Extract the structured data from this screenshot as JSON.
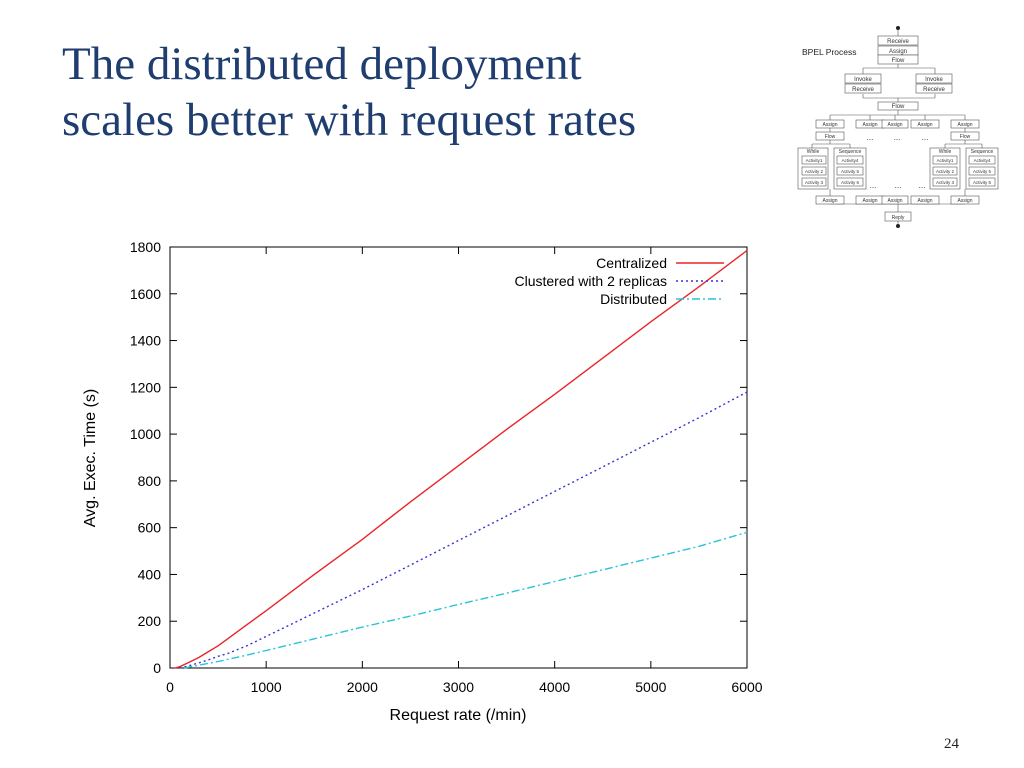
{
  "slide": {
    "title_line1": "The distributed deployment",
    "title_line2": "scales better with request rates",
    "page_number": "24"
  },
  "diagram": {
    "label": "BPEL Process",
    "receive": "Receive",
    "assign": "Assign",
    "flow": "Flow",
    "invoke": "Invoke",
    "while": "While",
    "sequence": "Sequence",
    "activity1": "Activity1",
    "activity2": "Activity 2",
    "activity3": "Activity 3",
    "activity4": "Activity4",
    "activity5": "Activity 5",
    "activity6": "Activity 6",
    "reply": "Reply",
    "ellipsis": "..."
  },
  "chart_data": {
    "type": "line",
    "xlabel": "Request rate (/min)",
    "ylabel": "Avg. Exec. Time (s)",
    "xlim": [
      0,
      6000
    ],
    "ylim": [
      0,
      1800
    ],
    "xticks": [
      0,
      1000,
      2000,
      3000,
      4000,
      5000,
      6000
    ],
    "yticks": [
      0,
      200,
      400,
      600,
      800,
      1000,
      1200,
      1400,
      1600,
      1800
    ],
    "grid": false,
    "legend_position": "top-right",
    "series": [
      {
        "name": "Centralized",
        "color": "#e8262a",
        "style": "solid",
        "x": [
          50,
          100,
          200,
          300,
          400,
          500,
          600,
          800,
          1000,
          1500,
          2000,
          2500,
          3000,
          3500,
          4000,
          4500,
          5000,
          5500,
          6000
        ],
        "y": [
          0,
          5,
          25,
          45,
          70,
          95,
          125,
          185,
          245,
          400,
          550,
          710,
          865,
          1020,
          1170,
          1325,
          1480,
          1630,
          1785
        ]
      },
      {
        "name": "Clustered with 2 replicas",
        "color": "#3434d6",
        "style": "dotted",
        "x": [
          100,
          200,
          300,
          400,
          500,
          600,
          800,
          1000,
          1500,
          2000,
          2500,
          3000,
          3500,
          4000,
          4500,
          5000,
          5500,
          6000
        ],
        "y": [
          0,
          10,
          22,
          35,
          50,
          62,
          95,
          135,
          235,
          335,
          440,
          545,
          650,
          755,
          860,
          965,
          1070,
          1180
        ]
      },
      {
        "name": "Distributed",
        "color": "#29c4d8",
        "style": "dashdot",
        "x": [
          150,
          300,
          500,
          800,
          1000,
          1500,
          2000,
          2500,
          3000,
          3500,
          4000,
          4500,
          5000,
          5500,
          6000
        ],
        "y": [
          0,
          12,
          28,
          55,
          75,
          125,
          175,
          222,
          272,
          320,
          370,
          420,
          470,
          520,
          580
        ]
      }
    ]
  }
}
